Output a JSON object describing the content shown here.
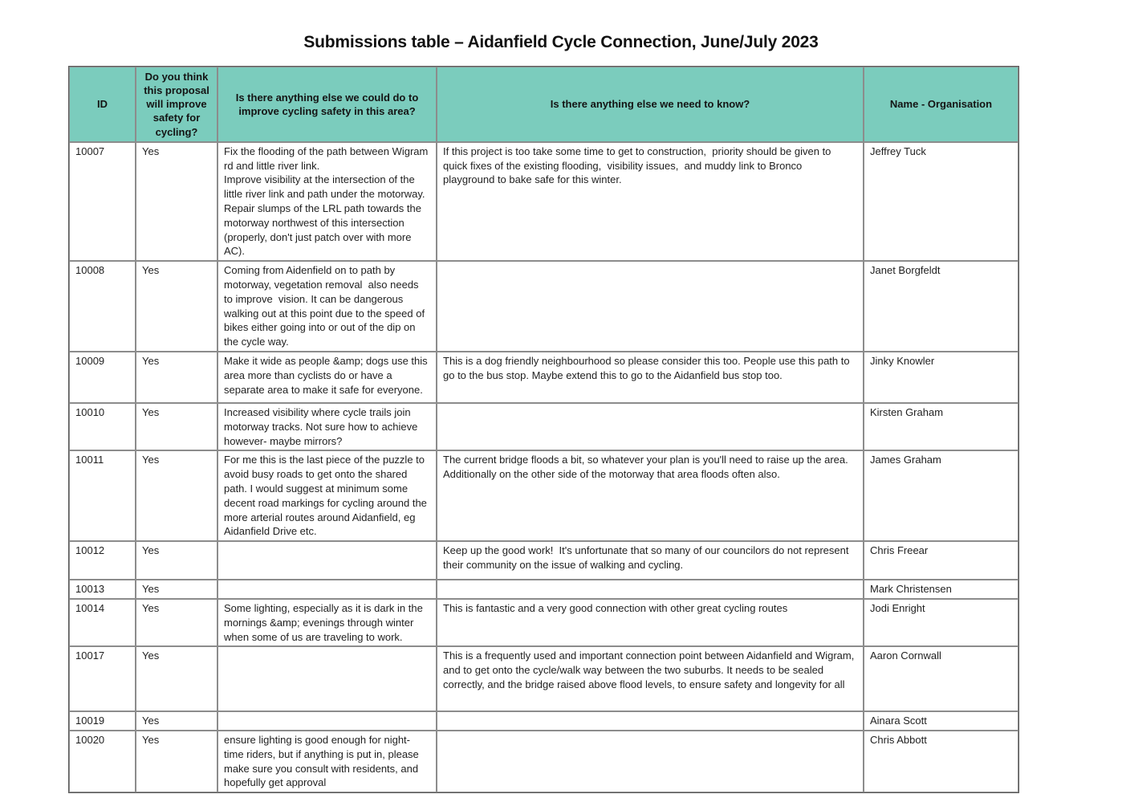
{
  "title": "Submissions table – Aidanfield Cycle Connection, June/July 2023",
  "colors": {
    "header_bg": "#7bccbd",
    "grid_line": "#8c8c8c",
    "text": "#1f1f1f"
  },
  "table": {
    "columns": [
      {
        "key": "id",
        "label": "ID"
      },
      {
        "key": "improve",
        "label": "Do you think this proposal will improve safety for cycling?"
      },
      {
        "key": "else_improve",
        "label": "Is there anything else we could do to improve cycling safety in this area?"
      },
      {
        "key": "need_know",
        "label": "Is there anything else we need to know?"
      },
      {
        "key": "name",
        "label": "Name - Organisation"
      }
    ],
    "rows": [
      {
        "id": "10007",
        "improve": "Yes",
        "else_improve": "Fix the flooding of the path between Wigram rd and little river link.\nImprove visibility at the intersection of the little river link and path under the motorway.\nRepair slumps of the LRL path towards the motorway northwest of this intersection (properly, don't just patch over with more AC).",
        "need_know": "If this project is too take some time to get to construction,  priority should be given to quick fixes of the existing flooding,  visibility issues,  and muddy link to Bronco playground to bake safe for this winter.",
        "name": "Jeffrey Tuck"
      },
      {
        "id": "10008",
        "improve": "Yes",
        "else_improve": "Coming from Aidenfield on to path by motorway, vegetation removal  also needs to improve  vision. It can be dangerous walking out at this point due to the speed of bikes either going into or out of the dip on the cycle way.",
        "need_know": "",
        "name": "Janet Borgfeldt"
      },
      {
        "id": "10009",
        "improve": "Yes",
        "else_improve": "Make it wide as people &amp; dogs use this area more than cyclists do or have a separate area to make it safe for everyone.",
        "need_know": "This is a dog friendly neighbourhood so please consider this too. People use this path to go to the bus stop. Maybe extend this to go to the Aidanfield bus stop too.",
        "name": "Jinky Knowler"
      },
      {
        "id": "10010",
        "improve": "Yes",
        "else_improve": "Increased visibility where cycle trails join motorway tracks. Not sure how to achieve however- maybe mirrors?",
        "need_know": "",
        "name": "Kirsten Graham"
      },
      {
        "id": "10011",
        "improve": "Yes",
        "else_improve": "For me this is the last piece of the puzzle to avoid busy roads to get onto the shared path. I would suggest at minimum some decent road markings for cycling around the more arterial routes around Aidanfield, eg Aidanfield Drive etc.",
        "need_know": "The current bridge floods a bit, so whatever your plan is you'll need to raise up the area. Additionally on the other side of the motorway that area floods often also.",
        "name": "James Graham"
      },
      {
        "id": "10012",
        "improve": "Yes",
        "else_improve": "",
        "need_know": "Keep up the good work!  It's unfortunate that so many of our councilors do not represent their community on the issue of walking and cycling.",
        "name": "Chris Freear"
      },
      {
        "id": "10013",
        "improve": "Yes",
        "else_improve": "",
        "need_know": "",
        "name": "Mark Christensen"
      },
      {
        "id": "10014",
        "improve": "Yes",
        "else_improve": "Some lighting, especially as it is dark in the mornings &amp; evenings through winter when some of us are traveling to work.",
        "need_know": "This is fantastic and a very good connection with other great cycling routes",
        "name": "Jodi Enright"
      },
      {
        "id": "10017",
        "improve": "Yes",
        "else_improve": "",
        "need_know": "This is a frequently used and important connection point between Aidanfield and Wigram, and to get onto the cycle/walk way between the two suburbs. It needs to be sealed correctly, and the bridge raised above flood levels, to ensure safety and longevity for all",
        "name": "Aaron Cornwall"
      },
      {
        "id": "10019",
        "improve": "Yes",
        "else_improve": "",
        "need_know": "",
        "name": "Ainara Scott"
      },
      {
        "id": "10020",
        "improve": "Yes",
        "else_improve": "ensure lighting is good enough for night-time riders, but if anything is put in, please make sure you consult with residents, and hopefully get approval",
        "need_know": "",
        "name": "Chris Abbott"
      }
    ]
  }
}
